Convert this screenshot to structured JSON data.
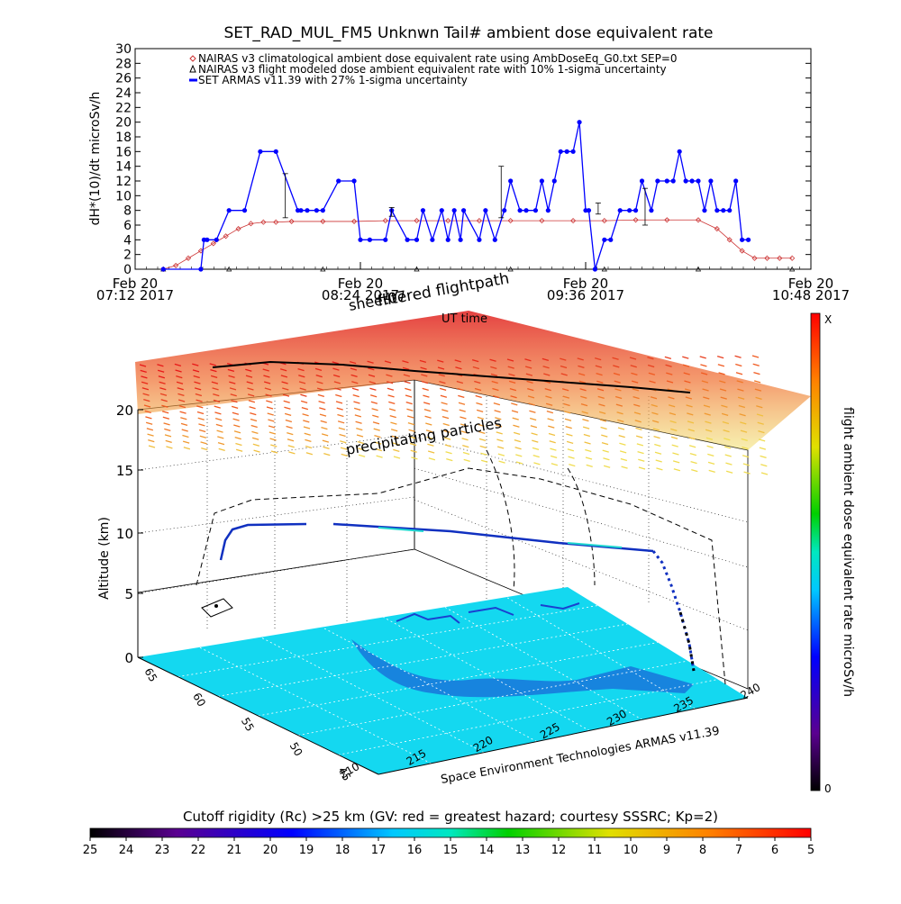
{
  "chart_data": [
    {
      "type": "line",
      "title": "SET_RAD_MUL_FM5 Unknwn Tail#  ambient dose equivalent rate",
      "ylabel": "dH*(10)/dt microSv/h",
      "xlabel": "UT time",
      "ylim": [
        0,
        30
      ],
      "yticks": [
        0,
        2,
        4,
        6,
        8,
        10,
        12,
        14,
        16,
        18,
        20,
        22,
        24,
        26,
        28,
        30
      ],
      "xlim_minutes": [
        0,
        216
      ],
      "xticks": [
        {
          "line1": "Feb 20",
          "line2": "07:12 2017",
          "t": 0
        },
        {
          "line1": "Feb 20",
          "line2": "08:24 2017",
          "t": 72
        },
        {
          "line1": "Feb 20",
          "line2": "09:36 2017",
          "t": 144
        },
        {
          "line1": "Feb 20",
          "line2": "10:48 2017",
          "t": 216
        }
      ],
      "series": [
        {
          "name": "NAIRAS v3 climatological ambient dose equivalent rate using AmbDoseEq_G0.txt SEP=0",
          "color": "#cc3333",
          "marker": "diamond",
          "x": [
            9,
            13,
            17,
            21,
            25,
            29,
            33,
            37,
            41,
            45,
            50,
            60,
            70,
            80,
            90,
            100,
            110,
            120,
            130,
            140,
            150,
            160,
            170,
            180,
            186,
            190,
            194,
            198,
            202,
            206,
            210
          ],
          "y": [
            0,
            0.5,
            1.5,
            2.5,
            3.5,
            4.5,
            5.5,
            6.2,
            6.4,
            6.4,
            6.5,
            6.5,
            6.5,
            6.6,
            6.6,
            6.6,
            6.6,
            6.6,
            6.6,
            6.6,
            6.6,
            6.7,
            6.7,
            6.7,
            5.5,
            4,
            2.5,
            1.5,
            1.5,
            1.5,
            1.5
          ]
        },
        {
          "name": "NAIRAS v3 flight modeled dose ambient equivalent rate with 10% 1-sigma uncertainty",
          "color": "#000000",
          "marker": "triangle",
          "x": [
            9,
            30,
            60,
            90,
            120,
            150,
            180,
            210
          ],
          "y": [
            0,
            0,
            0,
            0,
            0,
            0,
            0,
            0
          ]
        },
        {
          "name": "SET ARMAS v11.39 with 27% 1-sigma uncertainty",
          "color": "#0000ff",
          "marker": "circle",
          "x": [
            9,
            21,
            22,
            23,
            26,
            30,
            35,
            40,
            45,
            52,
            53,
            55,
            58,
            60,
            65,
            70,
            72,
            75,
            80,
            82,
            87,
            90,
            92,
            95,
            98,
            100,
            102,
            104,
            105,
            110,
            112,
            115,
            118,
            120,
            123,
            125,
            128,
            130,
            132,
            134,
            136,
            138,
            140,
            142,
            144,
            145,
            147,
            150,
            152,
            155,
            158,
            160,
            162,
            165,
            167,
            170,
            172,
            174,
            176,
            178,
            180,
            182,
            184,
            186,
            188,
            190,
            192,
            194,
            196
          ],
          "y": [
            0,
            0,
            4,
            4,
            4,
            8,
            8,
            16,
            16,
            8,
            8,
            8,
            8,
            8,
            12,
            12,
            4,
            4,
            4,
            8,
            4,
            4,
            8,
            4,
            8,
            4,
            8,
            4,
            8,
            4,
            8,
            4,
            8,
            12,
            8,
            8,
            8,
            12,
            8,
            12,
            16,
            16,
            16,
            20,
            8,
            8,
            0,
            4,
            4,
            8,
            8,
            8,
            12,
            8,
            12,
            12,
            12,
            16,
            12,
            12,
            12,
            8,
            12,
            8,
            8,
            8,
            12,
            4,
            4
          ]
        }
      ]
    },
    {
      "type": "scatter",
      "title_annotations": [
        "sheet07",
        "filtered flightpath",
        "UT time",
        "precipitating particles"
      ],
      "zlabel": "Altitude (km)",
      "zticks": [
        "0",
        "5",
        "10",
        "15",
        "20"
      ],
      "lat_ticks": [
        "65",
        "60",
        "55",
        "50",
        "45"
      ],
      "lon_ticks": [
        "210",
        "215",
        "220",
        "225",
        "230",
        "235",
        "240"
      ],
      "footer": "Space Environment Technologies ARMAS v11.39",
      "colorbar_label": "flight ambient dose equivalent rate microSv/h",
      "colorbar_top": "X",
      "colorbar_bottom": "0"
    },
    {
      "type": "heatmap",
      "colorbar_title": "Cutoff rigidity (Rc) >25 km (GV: red = greatest hazard; courtesy SSSRC; Kp=2)",
      "colorbar_ticks": [
        "25",
        "24",
        "23",
        "22",
        "21",
        "20",
        "19",
        "18",
        "17",
        "16",
        "15",
        "14",
        "13",
        "12",
        "11",
        "10",
        "9",
        "8",
        "7",
        "6",
        "5"
      ]
    }
  ]
}
